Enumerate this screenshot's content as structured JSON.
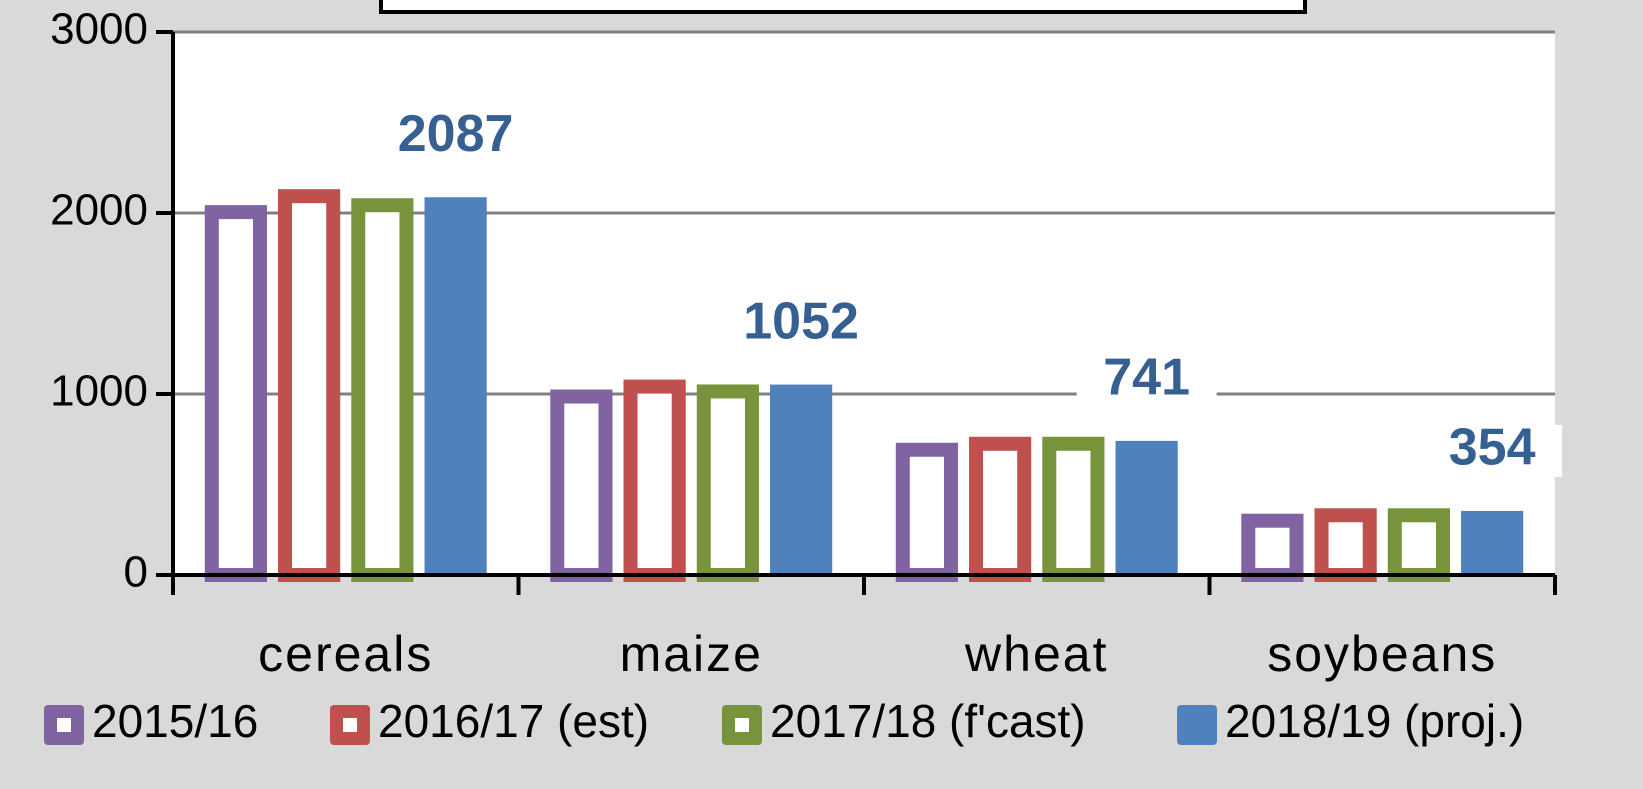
{
  "chart_data": {
    "type": "bar",
    "categories": [
      "cereals",
      "maize",
      "wheat",
      "soybeans"
    ],
    "series": [
      {
        "name": "2015/16",
        "color": "#8064a2",
        "outline": true,
        "values": [
          2005,
          986,
          692,
          300
        ]
      },
      {
        "name": "2016/17 (est)",
        "color": "#c0504d",
        "outline": true,
        "values": [
          2093,
          1041,
          725,
          330
        ]
      },
      {
        "name": "2017/18 (f'cast)",
        "color": "#77933c",
        "outline": true,
        "values": [
          2043,
          1014,
          725,
          330
        ]
      },
      {
        "name": "2018/19 (proj.)",
        "color": "#4f81bd",
        "outline": false,
        "data_labels": true,
        "values": [
          2087,
          1052,
          741,
          354
        ]
      }
    ],
    "ylim": [
      0,
      3000
    ],
    "yticks": [
      0,
      1000,
      2000,
      3000
    ],
    "grid": true
  }
}
